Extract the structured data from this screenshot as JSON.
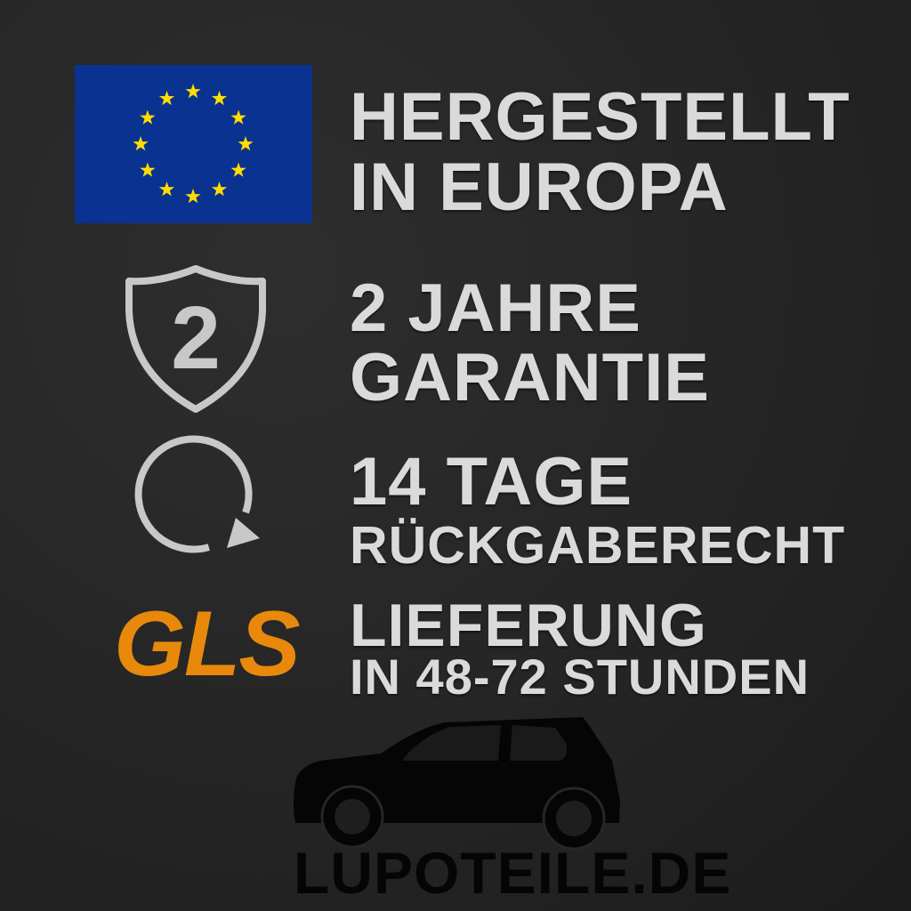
{
  "colors": {
    "background": "#262626",
    "text": "#dadada",
    "eu_blue": "#0a3291",
    "eu_star": "#ffdd00",
    "gls_orange": "#e8890c",
    "car": "#050505"
  },
  "features": [
    {
      "icon": "eu-flag-icon",
      "line1": "HERGESTELLT",
      "line2": "IN EUROPA"
    },
    {
      "icon": "shield-warranty-icon",
      "badge": "2",
      "line1": "2 JAHRE",
      "line2": "GARANTIE"
    },
    {
      "icon": "return-arrow-icon",
      "line1": "14 TAGE",
      "line2": "RÜCKGABERECHT"
    },
    {
      "icon": "gls-logo",
      "logo_text": "GLS",
      "line1": "LIEFERUNG",
      "line2": "IN 48-72 STUNDEN"
    }
  ],
  "brand": {
    "icon": "car-silhouette-icon",
    "name": "LUPOTEILE.DE"
  }
}
